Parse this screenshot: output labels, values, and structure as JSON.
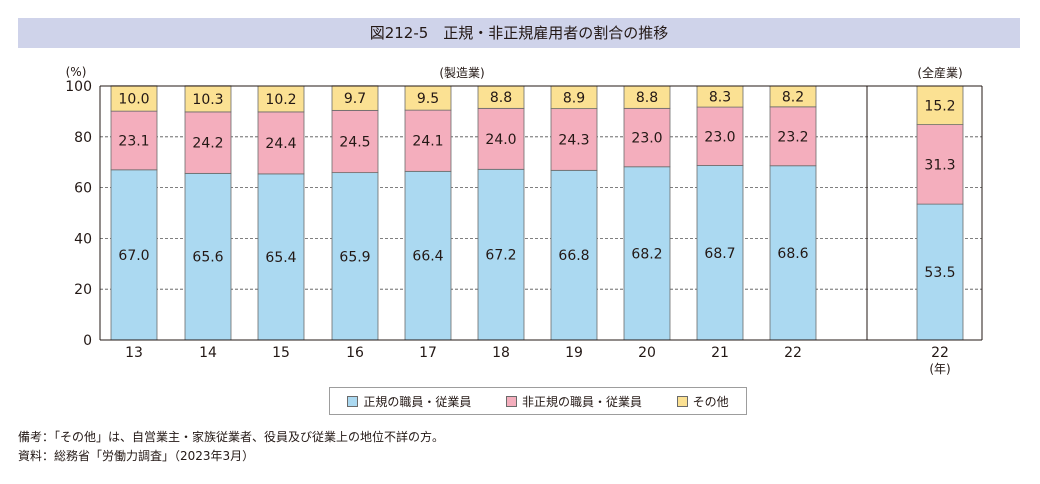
{
  "title": "図212-5　正規・非正規雇用者の割合の推移",
  "notes": {
    "remark": "備考：「その他」は、自営業主・家族従業者、役員及び従業上の地位不詳の方。",
    "source": "資料：総務省「労働力調査」（2023年3月）"
  },
  "colors": {
    "regular": "#abd9f1",
    "non_regular": "#f4aebd",
    "other": "#fbe193",
    "grid": "#555555",
    "title_bg": "#cfd3ea"
  },
  "chart_data": {
    "type": "bar",
    "stacked": true,
    "percent": true,
    "y_unit_label": "(%)",
    "ylim": [
      0,
      100
    ],
    "y_ticks": [
      0,
      20,
      40,
      60,
      80,
      100
    ],
    "grid": "dashed horizontal",
    "group_labels": {
      "manufacturing": "(製造業)",
      "all_industries": "(全産業)"
    },
    "x_unit_label": "(年)",
    "categories": [
      "13",
      "14",
      "15",
      "16",
      "17",
      "18",
      "19",
      "20",
      "21",
      "22",
      "22"
    ],
    "category_group": [
      "manufacturing",
      "manufacturing",
      "manufacturing",
      "manufacturing",
      "manufacturing",
      "manufacturing",
      "manufacturing",
      "manufacturing",
      "manufacturing",
      "manufacturing",
      "all_industries"
    ],
    "series": [
      {
        "name": "正規の職員・従業員",
        "color_key": "regular",
        "values": [
          67.0,
          65.6,
          65.4,
          65.9,
          66.4,
          67.2,
          66.8,
          68.2,
          68.7,
          68.6,
          53.5
        ]
      },
      {
        "name": "非正規の職員・従業員",
        "color_key": "non_regular",
        "values": [
          23.1,
          24.2,
          24.4,
          24.5,
          24.1,
          24.0,
          24.3,
          23.0,
          23.0,
          23.2,
          31.3
        ]
      },
      {
        "name": "その他",
        "color_key": "other",
        "values": [
          10.0,
          10.3,
          10.2,
          9.7,
          9.5,
          8.8,
          8.9,
          8.8,
          8.3,
          8.2,
          15.2
        ]
      }
    ]
  }
}
